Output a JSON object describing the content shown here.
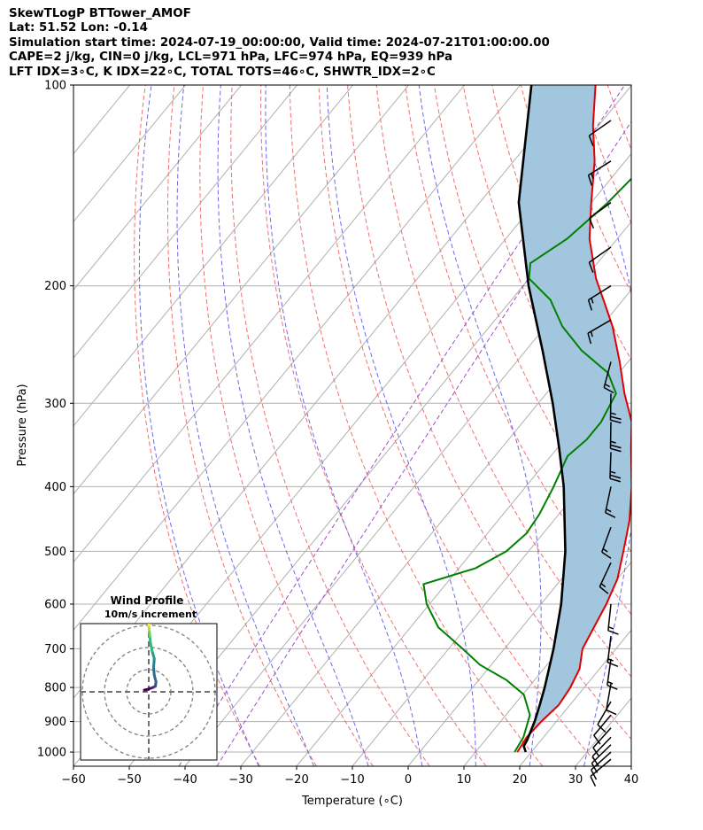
{
  "header": {
    "line1": "SkewTLogP BTTower_AMOF",
    "line2": "Lat: 51.52   Lon: -0.14",
    "line3": "Simulation start time: 2024-07-19_00:00:00, Valid time: 2024-07-21T01:00:00.00",
    "line4": "CAPE=2 j/kg, CIN=0 j/kg, LCL=971 hPa, LFC=974 hPa, EQ=939 hPa",
    "line5": "LFT IDX=3∘C, K IDX=22∘C, TOTAL TOTS=46∘C, SHWTR_IDX=2∘C"
  },
  "chart_data": {
    "type": "line",
    "subtype": "skew-T log-P",
    "xlabel": "Temperature (∘C)",
    "ylabel": "Pressure (hPa)",
    "xlim": [
      -60,
      40
    ],
    "ylim": [
      1050,
      100
    ],
    "y_scale": "log",
    "x_ticks": [
      -60,
      -50,
      -40,
      -30,
      -20,
      -10,
      0,
      10,
      20,
      30,
      40
    ],
    "x_tick_labels": [
      "−60",
      "−50",
      "−40",
      "−30",
      "−20",
      "−10",
      "0",
      "10",
      "20",
      "30",
      "40"
    ],
    "y_ticks": [
      100,
      200,
      300,
      400,
      500,
      600,
      700,
      800,
      900,
      1000
    ],
    "y_tick_labels": [
      "100",
      "200",
      "300",
      "400",
      "500",
      "600",
      "700",
      "800",
      "900",
      "1000"
    ],
    "grid": true,
    "colors": {
      "temperature": "#e00000",
      "dewpoint": "#008000",
      "parcel": "#000000",
      "cape_fill": "#a3c6df",
      "dry_adiabat": "#f07070",
      "moist_adiabat": "#6a6aee",
      "mixing_ratio": "#9d4fc7",
      "isotherm": "#b0b0b0"
    },
    "series": [
      {
        "role": "temperature",
        "points": [
          [
            1000,
            17.5
          ],
          [
            950,
            17.0
          ],
          [
            900,
            17.3
          ],
          [
            850,
            18.0
          ],
          [
            800,
            17.5
          ],
          [
            750,
            16.4
          ],
          [
            700,
            14.0
          ],
          [
            600,
            11.7
          ],
          [
            550,
            10.0
          ],
          [
            500,
            7.0
          ],
          [
            450,
            3.6
          ],
          [
            400,
            -1.0
          ],
          [
            350,
            -6.8
          ],
          [
            320,
            -10.5
          ],
          [
            290,
            -16.0
          ],
          [
            260,
            -21.5
          ],
          [
            230,
            -28.0
          ],
          [
            210,
            -33.5
          ],
          [
            195,
            -38.0
          ],
          [
            170,
            -45.0
          ],
          [
            150,
            -50.0
          ],
          [
            130,
            -55.5
          ],
          [
            115,
            -61.0
          ],
          [
            100,
            -66.5
          ]
        ]
      },
      {
        "role": "dewpoint",
        "points": [
          [
            1000,
            17.0
          ],
          [
            950,
            16.4
          ],
          [
            880,
            14.3
          ],
          [
            820,
            10.2
          ],
          [
            780,
            5.0
          ],
          [
            740,
            -2.0
          ],
          [
            700,
            -7.5
          ],
          [
            650,
            -15.0
          ],
          [
            600,
            -20.5
          ],
          [
            560,
            -24.0
          ],
          [
            530,
            -17.0
          ],
          [
            500,
            -14.0
          ],
          [
            470,
            -13.0
          ],
          [
            440,
            -13.5
          ],
          [
            400,
            -15.0
          ],
          [
            360,
            -17.0
          ],
          [
            340,
            -16.0
          ],
          [
            320,
            -16.0
          ],
          [
            290,
            -17.5
          ],
          [
            270,
            -22.0
          ],
          [
            250,
            -30.0
          ],
          [
            230,
            -37.0
          ],
          [
            210,
            -43.0
          ],
          [
            195,
            -50.0
          ],
          [
            185,
            -52.0
          ],
          [
            170,
            -49.0
          ],
          [
            150,
            -47.0
          ],
          [
            125,
            -45.5
          ],
          [
            100,
            -43.0
          ]
        ]
      },
      {
        "role": "parcel",
        "points": [
          [
            1000,
            19.0
          ],
          [
            980,
            17.8
          ],
          [
            960,
            17.5
          ],
          [
            900,
            16.1
          ],
          [
            850,
            14.6
          ],
          [
            800,
            12.9
          ],
          [
            700,
            8.8
          ],
          [
            600,
            3.6
          ],
          [
            500,
            -3.4
          ],
          [
            400,
            -13.2
          ],
          [
            350,
            -19.7
          ],
          [
            300,
            -27.4
          ],
          [
            250,
            -37.0
          ],
          [
            200,
            -49.0
          ],
          [
            150,
            -63.0
          ],
          [
            100,
            -78.0
          ]
        ]
      }
    ],
    "reference_lines": {
      "isotherms_C": [
        -150,
        -140,
        -130,
        -120,
        -110,
        -100,
        -90,
        -80,
        -70,
        -60,
        -50,
        -40,
        -30,
        -20,
        -10,
        0,
        10,
        20,
        30,
        40
      ],
      "dry_adiabats_C_at_1000hPa": [
        -30,
        -20,
        -10,
        0,
        10,
        20,
        30,
        40,
        50,
        60,
        70,
        80,
        90,
        100,
        110,
        120,
        130,
        140,
        150,
        160
      ],
      "moist_adiabats_C_at_1000hPa": [
        -30,
        -20,
        -10,
        0,
        10,
        20,
        30,
        40
      ],
      "mixing_ratio_lines_g_per_kg": [
        0.1,
        0.2
      ]
    },
    "wind_barbs": {
      "units": "kt",
      "points": [
        {
          "p": 1025,
          "spd": 11,
          "dir": 230
        },
        {
          "p": 1000,
          "spd": 11,
          "dir": 228
        },
        {
          "p": 975,
          "spd": 11,
          "dir": 226
        },
        {
          "p": 950,
          "spd": 12,
          "dir": 224
        },
        {
          "p": 920,
          "spd": 12,
          "dir": 222
        },
        {
          "p": 880,
          "spd": 10,
          "dir": 220
        },
        {
          "p": 840,
          "spd": 8,
          "dir": 210
        },
        {
          "p": 790,
          "spd": 12,
          "dir": 190
        },
        {
          "p": 725,
          "spd": 15,
          "dir": 188
        },
        {
          "p": 670,
          "spd": 15,
          "dir": 187
        },
        {
          "p": 600,
          "spd": 15,
          "dir": 186
        },
        {
          "p": 520,
          "spd": 15,
          "dir": 205
        },
        {
          "p": 460,
          "spd": 15,
          "dir": 200
        },
        {
          "p": 400,
          "spd": 15,
          "dir": 192
        },
        {
          "p": 355,
          "spd": 25,
          "dir": 182
        },
        {
          "p": 320,
          "spd": 25,
          "dir": 181
        },
        {
          "p": 290,
          "spd": 25,
          "dir": 181
        },
        {
          "p": 260,
          "spd": 15,
          "dir": 195
        },
        {
          "p": 225,
          "spd": 13,
          "dir": 240
        },
        {
          "p": 200,
          "spd": 13,
          "dir": 238
        },
        {
          "p": 175,
          "spd": 12,
          "dir": 235
        },
        {
          "p": 150,
          "spd": 12,
          "dir": 234
        },
        {
          "p": 130,
          "spd": 14,
          "dir": 238
        },
        {
          "p": 113,
          "spd": 12,
          "dir": 235
        }
      ]
    },
    "hodograph": {
      "title": "Wind Profile",
      "subtitle": "10m/s increment",
      "ring_increment_ms": 10,
      "points": [
        [
          -2.0,
          0.8
        ],
        [
          -1.0,
          1.0
        ],
        [
          1.5,
          1.8
        ],
        [
          3.0,
          2.5
        ],
        [
          3.3,
          4.5
        ],
        [
          2.5,
          7.5
        ],
        [
          2.2,
          11.0
        ],
        [
          2.5,
          15.0
        ],
        [
          1.5,
          18.5
        ],
        [
          0.8,
          22.0
        ],
        [
          0.5,
          25.0
        ],
        [
          0.2,
          28.0
        ],
        [
          0.0,
          30.0
        ],
        [
          0.3,
          31.0
        ]
      ]
    }
  }
}
